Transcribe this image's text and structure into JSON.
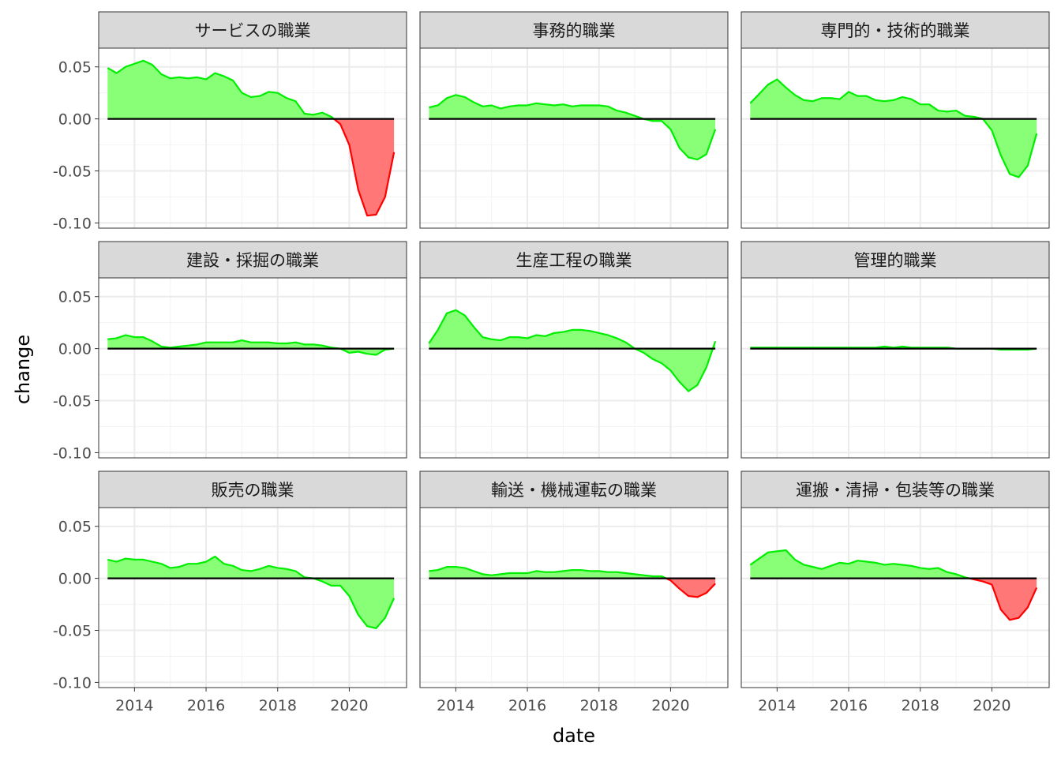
{
  "chart_data": {
    "type": "area",
    "layout": "facet-grid-3x3",
    "title": "",
    "xlabel": "date",
    "ylabel": "change",
    "xlim": [
      2013.0,
      2021.6
    ],
    "ylim": [
      -0.105,
      0.068
    ],
    "x_ticks": [
      2014,
      2016,
      2018,
      2020
    ],
    "x_tick_labels": [
      "2014",
      "2016",
      "2018",
      "2020"
    ],
    "y_ticks": [
      -0.1,
      -0.05,
      0.0,
      0.05
    ],
    "y_tick_labels": [
      "-0.10",
      "-0.05",
      "0.00",
      "0.05"
    ],
    "grid": true,
    "legend": "none",
    "colors": {
      "positive_line": "#00ee00",
      "positive_fill": "#88ff77",
      "negative_line": "#ff0000",
      "negative_fill": "#ff7777",
      "zero_line": "#000000",
      "strip_bg": "#d9d9d9",
      "panel_border": "#333333",
      "grid_major": "#ebebeb"
    },
    "x": [
      2013.25,
      2013.5,
      2013.75,
      2014.0,
      2014.25,
      2014.5,
      2014.75,
      2015.0,
      2015.25,
      2015.5,
      2015.75,
      2016.0,
      2016.25,
      2016.5,
      2016.75,
      2017.0,
      2017.25,
      2017.5,
      2017.75,
      2018.0,
      2018.25,
      2018.5,
      2018.75,
      2019.0,
      2019.25,
      2019.5,
      2019.75,
      2020.0,
      2020.25,
      2020.5,
      2020.75,
      2021.0,
      2021.25
    ],
    "panels": [
      {
        "name": "サービスの職業",
        "values": [
          0.049,
          0.044,
          0.05,
          0.053,
          0.056,
          0.052,
          0.043,
          0.039,
          0.04,
          0.039,
          0.04,
          0.038,
          0.044,
          0.041,
          0.037,
          0.025,
          0.021,
          0.022,
          0.026,
          0.025,
          0.02,
          0.017,
          0.005,
          0.004,
          0.006,
          0.002,
          -0.005,
          -0.025,
          -0.068,
          -0.093,
          -0.092,
          -0.075,
          -0.032
        ]
      },
      {
        "name": "事務的職業",
        "values": [
          0.011,
          0.013,
          0.02,
          0.023,
          0.021,
          0.016,
          0.012,
          0.013,
          0.01,
          0.012,
          0.013,
          0.013,
          0.015,
          0.014,
          0.013,
          0.014,
          0.012,
          0.013,
          0.013,
          0.013,
          0.012,
          0.008,
          0.006,
          0.003,
          0.0,
          -0.002,
          -0.002,
          -0.01,
          -0.028,
          -0.037,
          -0.039,
          -0.034,
          -0.01
        ]
      },
      {
        "name": "専門的・技術的職業",
        "values": [
          0.015,
          0.024,
          0.033,
          0.038,
          0.03,
          0.023,
          0.018,
          0.017,
          0.02,
          0.02,
          0.019,
          0.026,
          0.022,
          0.022,
          0.018,
          0.017,
          0.018,
          0.021,
          0.019,
          0.014,
          0.014,
          0.008,
          0.007,
          0.008,
          0.003,
          0.002,
          0.0,
          -0.011,
          -0.035,
          -0.053,
          -0.056,
          -0.045,
          -0.014
        ]
      },
      {
        "name": "建設・採掘の職業",
        "values": [
          0.009,
          0.01,
          0.013,
          0.011,
          0.011,
          0.007,
          0.002,
          0.001,
          0.002,
          0.003,
          0.004,
          0.006,
          0.006,
          0.006,
          0.006,
          0.008,
          0.006,
          0.006,
          0.006,
          0.005,
          0.005,
          0.006,
          0.004,
          0.004,
          0.003,
          0.001,
          0.0,
          -0.004,
          -0.003,
          -0.005,
          -0.006,
          -0.001,
          0.0
        ]
      },
      {
        "name": "生産工程の職業",
        "values": [
          0.005,
          0.018,
          0.034,
          0.037,
          0.032,
          0.021,
          0.011,
          0.009,
          0.008,
          0.011,
          0.011,
          0.01,
          0.013,
          0.012,
          0.015,
          0.016,
          0.018,
          0.018,
          0.017,
          0.015,
          0.013,
          0.01,
          0.006,
          0.0,
          -0.004,
          -0.01,
          -0.014,
          -0.021,
          -0.032,
          -0.041,
          -0.035,
          -0.018,
          0.007
        ]
      },
      {
        "name": "管理的職業",
        "values": [
          0.001,
          0.001,
          0.001,
          0.001,
          0.001,
          0.001,
          0.001,
          0.001,
          0.001,
          0.001,
          0.001,
          0.001,
          0.001,
          0.001,
          0.001,
          0.002,
          0.001,
          0.002,
          0.001,
          0.001,
          0.001,
          0.001,
          0.001,
          0.0,
          0.0,
          0.0,
          0.0,
          0.0,
          -0.001,
          -0.001,
          -0.001,
          -0.001,
          0.0
        ]
      },
      {
        "name": "販売の職業",
        "values": [
          0.018,
          0.016,
          0.019,
          0.018,
          0.018,
          0.016,
          0.014,
          0.01,
          0.011,
          0.014,
          0.014,
          0.016,
          0.021,
          0.014,
          0.012,
          0.008,
          0.007,
          0.009,
          0.012,
          0.01,
          0.009,
          0.007,
          0.001,
          0.0,
          -0.003,
          -0.007,
          -0.007,
          -0.017,
          -0.035,
          -0.046,
          -0.048,
          -0.038,
          -0.019
        ]
      },
      {
        "name": "輸送・機械運転の職業",
        "values": [
          0.007,
          0.008,
          0.011,
          0.011,
          0.01,
          0.007,
          0.004,
          0.003,
          0.004,
          0.005,
          0.005,
          0.005,
          0.007,
          0.006,
          0.006,
          0.007,
          0.008,
          0.008,
          0.007,
          0.007,
          0.006,
          0.006,
          0.005,
          0.004,
          0.003,
          0.002,
          0.002,
          -0.002,
          -0.01,
          -0.017,
          -0.018,
          -0.014,
          -0.005
        ]
      },
      {
        "name": "運搬・清掃・包装等の職業",
        "values": [
          0.013,
          0.019,
          0.025,
          0.026,
          0.027,
          0.018,
          0.013,
          0.011,
          0.009,
          0.012,
          0.015,
          0.014,
          0.017,
          0.016,
          0.015,
          0.013,
          0.014,
          0.013,
          0.012,
          0.01,
          0.009,
          0.01,
          0.006,
          0.004,
          0.001,
          -0.001,
          -0.003,
          -0.006,
          -0.03,
          -0.04,
          -0.038,
          -0.028,
          -0.009
        ]
      }
    ]
  }
}
